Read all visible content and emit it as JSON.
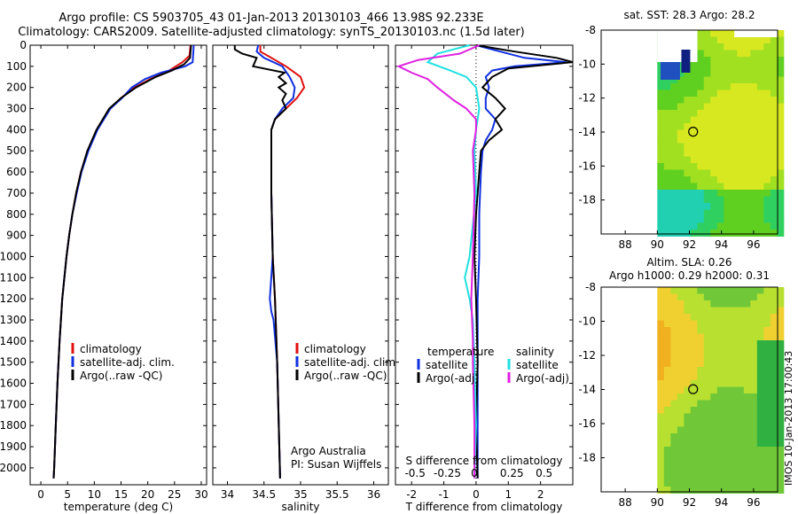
{
  "header": {
    "line1": "Argo profile: CS 5903705_43 01-Jan-2013 20130103_466 13.98S 92.233E",
    "line2": "Climatology: CARS2009. Satellite-adjusted climatology: synTS_20130103.nc (1.5d later)"
  },
  "side_stamp": "IMOS 10-Jan-2013 17:00:43",
  "colors": {
    "climatology": "#e01010",
    "satellite": "#1030e0",
    "argo": "#000000",
    "salinity_sat": "#20e0e0",
    "salinity_argo": "#e020e0"
  },
  "chart_data": [
    {
      "type": "line",
      "xlabel": "temperature (deg C)",
      "xlim": [
        -2,
        31
      ],
      "xticks": [
        0,
        5,
        10,
        15,
        20,
        25,
        30
      ],
      "ylim": [
        0,
        2080
      ],
      "yticks": [
        0,
        100,
        200,
        300,
        400,
        500,
        600,
        700,
        800,
        900,
        1000,
        1100,
        1200,
        1300,
        1400,
        1500,
        1600,
        1700,
        1800,
        1900,
        2000
      ],
      "yreversed": true,
      "legend": [
        "climatology",
        "satellite-adj. clim.",
        "Argo(..raw -QC)"
      ],
      "series": [
        {
          "name": "climatology",
          "color": "#e01010",
          "depth": [
            0,
            50,
            80,
            120,
            160,
            200,
            250,
            300,
            400,
            500,
            600,
            700,
            800,
            900,
            1000,
            1200,
            1400,
            1600,
            1800,
            2000,
            2050
          ],
          "values": [
            28.0,
            27.8,
            26.5,
            24.0,
            20.5,
            17.5,
            15.0,
            13.0,
            10.5,
            8.8,
            7.5,
            6.6,
            5.9,
            5.3,
            4.8,
            4.0,
            3.5,
            3.1,
            2.8,
            2.5,
            2.4
          ]
        },
        {
          "name": "satellite-adj. clim.",
          "color": "#1030e0",
          "depth": [
            0,
            80,
            100,
            130,
            160,
            200,
            250,
            300,
            400,
            500,
            600,
            700,
            800,
            900,
            1000,
            1200,
            1400,
            1600,
            1800,
            2000,
            2050
          ],
          "values": [
            28.6,
            28.4,
            27.0,
            22.5,
            19.5,
            17.0,
            15.2,
            13.0,
            10.6,
            8.9,
            7.6,
            6.7,
            5.9,
            5.3,
            4.8,
            4.0,
            3.5,
            3.1,
            2.8,
            2.5,
            2.4
          ]
        },
        {
          "name": "Argo(..raw -QC)",
          "color": "#000000",
          "depth": [
            0,
            60,
            90,
            120,
            150,
            200,
            250,
            300,
            400,
            500,
            600,
            700,
            800,
            900,
            1000,
            1200,
            1400,
            1600,
            1800,
            2000,
            2050
          ],
          "values": [
            28.1,
            27.9,
            26.8,
            24.5,
            21.5,
            17.8,
            15.0,
            12.8,
            10.4,
            8.7,
            7.5,
            6.6,
            5.9,
            5.3,
            4.8,
            4.0,
            3.5,
            3.1,
            2.8,
            2.5,
            2.4
          ]
        }
      ]
    },
    {
      "type": "line",
      "xlabel": "salinity",
      "xlim": [
        33.8,
        36.2
      ],
      "xticks": [
        34,
        34.5,
        35,
        35.5,
        36
      ],
      "ylim": [
        0,
        2080
      ],
      "yreversed": true,
      "legend": [
        "climatology",
        "satellite-adj. clim.",
        "Argo(..raw -QC)"
      ],
      "annotation": [
        "Argo Australia",
        "PI: Susan Wijffels"
      ],
      "series": [
        {
          "name": "climatology",
          "color": "#e01010",
          "depth": [
            0,
            30,
            60,
            100,
            150,
            200,
            250,
            300,
            350,
            400,
            500,
            700,
            1000,
            1200,
            1500,
            2050
          ],
          "values": [
            34.45,
            34.45,
            34.6,
            34.8,
            35.0,
            35.05,
            34.95,
            34.8,
            34.65,
            34.6,
            34.6,
            34.6,
            34.62,
            34.65,
            34.68,
            34.72
          ]
        },
        {
          "name": "satellite-adj. clim.",
          "color": "#1030e0",
          "depth": [
            0,
            30,
            60,
            100,
            150,
            200,
            250,
            300,
            350,
            400,
            500,
            700,
            1000,
            1200,
            1260,
            1300,
            1500,
            2050
          ],
          "values": [
            34.42,
            34.4,
            34.5,
            34.75,
            34.85,
            34.92,
            34.9,
            34.75,
            34.65,
            34.6,
            34.6,
            34.6,
            34.62,
            34.58,
            34.6,
            34.63,
            34.68,
            34.72
          ]
        },
        {
          "name": "Argo(..raw -QC)",
          "color": "#000000",
          "depth": [
            0,
            20,
            40,
            60,
            100,
            130,
            150,
            180,
            200,
            230,
            260,
            300,
            350,
            400,
            500,
            700,
            1000,
            1200,
            1500,
            2050
          ],
          "values": [
            34.1,
            34.1,
            34.2,
            34.4,
            34.35,
            34.78,
            34.7,
            34.8,
            34.7,
            34.8,
            34.75,
            34.8,
            34.65,
            34.6,
            34.6,
            34.6,
            34.62,
            34.65,
            34.68,
            34.72
          ]
        }
      ]
    },
    {
      "type": "line",
      "xlabel": "T difference from climatology",
      "secondary_label": "S difference from climatology",
      "xlim": [
        -2.5,
        3.0
      ],
      "xticks": [
        -2,
        -1,
        0,
        1,
        2
      ],
      "sticks_labels": [
        "-0.5",
        "-0.25",
        "0",
        "0.25",
        "0.5"
      ],
      "sticks_pos": [
        -2,
        -1,
        0,
        1,
        2
      ],
      "ylim": [
        0,
        2080
      ],
      "yreversed": true,
      "legend_titles": [
        "temperature",
        "salinity"
      ],
      "legend": [
        "satellite",
        "Argo(-adj)",
        "satellite",
        "Argo(-adj)"
      ],
      "series": [
        {
          "name": "satellite",
          "color": "#1030e0",
          "depth": [
            0,
            20,
            60,
            80,
            100,
            120,
            150,
            200,
            250,
            300,
            350,
            400,
            450,
            500,
            600,
            800,
            1000,
            1200,
            1500,
            2050
          ],
          "values": [
            0.0,
            0.5,
            1.5,
            2.8,
            1.2,
            0.5,
            0.3,
            0.4,
            0.3,
            0.3,
            0.6,
            0.5,
            0.3,
            0.2,
            0.15,
            0.1,
            0.1,
            0.05,
            0.05,
            0.05
          ]
        },
        {
          "name": "Argo(-adj)",
          "color": "#000000",
          "depth": [
            0,
            30,
            60,
            80,
            110,
            150,
            200,
            250,
            300,
            350,
            400,
            450,
            500,
            600,
            800,
            1000,
            1200,
            1500,
            1800,
            2050
          ],
          "values": [
            0.0,
            1.2,
            2.5,
            3.0,
            1.0,
            0.5,
            0.2,
            0.6,
            0.9,
            0.6,
            0.8,
            0.4,
            0.15,
            0.1,
            0.0,
            -0.05,
            0.0,
            0.05,
            0.0,
            0.05
          ]
        },
        {
          "name": "satellite",
          "color": "#20e0e0",
          "depth": [
            0,
            40,
            80,
            120,
            150,
            200,
            300,
            400,
            500,
            700,
            1000,
            1100,
            1200,
            1300,
            1500,
            1800,
            2050
          ],
          "values": [
            -0.2,
            -1.2,
            -1.5,
            -0.8,
            -0.3,
            0.0,
            0.1,
            0.0,
            -0.05,
            0.0,
            -0.2,
            -0.35,
            -0.2,
            -0.1,
            -0.05,
            0.0,
            -0.05
          ]
        },
        {
          "name": "Argo(-adj)",
          "color": "#e020e0",
          "depth": [
            0,
            40,
            70,
            100,
            130,
            160,
            200,
            260,
            300,
            350,
            400,
            500,
            700,
            1000,
            1200,
            1400,
            1500,
            1800,
            2050
          ],
          "values": [
            0.1,
            -0.5,
            -1.8,
            -2.4,
            -2.0,
            -1.5,
            -1.2,
            -0.7,
            -0.3,
            0.0,
            0.0,
            -0.1,
            -0.05,
            -0.1,
            -0.15,
            -0.1,
            -0.1,
            -0.05,
            -0.05
          ]
        }
      ]
    },
    {
      "type": "heatmap",
      "title": "sat. SST: 28.3 Argo: 28.2",
      "xlim": [
        86.5,
        97.5
      ],
      "xticks": [
        88,
        90,
        92,
        94,
        96
      ],
      "ylim": [
        -20,
        -8
      ],
      "yticks": [
        -8,
        -10,
        -12,
        -14,
        -16,
        -18
      ],
      "marker": {
        "lon": 92.233,
        "lat": -13.98
      }
    },
    {
      "type": "heatmap",
      "title": "Altim. SLA: 0.26",
      "subtitle": "Argo h1000: 0.29 h2000: 0.31",
      "xlim": [
        86.5,
        97.5
      ],
      "xticks": [
        88,
        90,
        92,
        94,
        96
      ],
      "ylim": [
        -20,
        -8
      ],
      "yticks": [
        -8,
        -10,
        -12,
        -14,
        -16,
        -18
      ],
      "marker": {
        "lon": 92.233,
        "lat": -13.98
      }
    }
  ]
}
